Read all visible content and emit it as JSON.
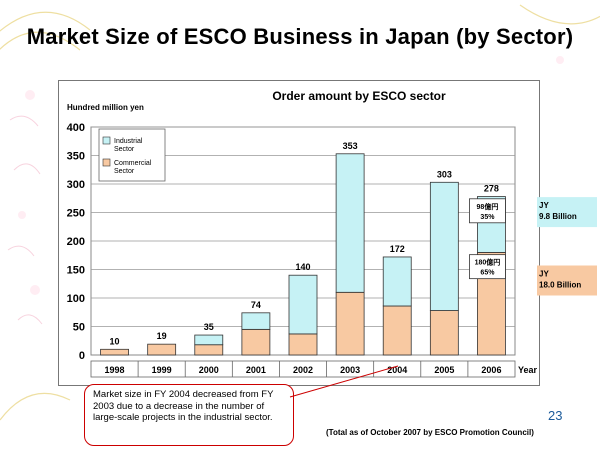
{
  "page": {
    "title": "Market Size of ESCO Business in Japan (by Sector)",
    "slide_number": "23",
    "source_note": "(Total as of October 2007 by ESCO Promotion Council)",
    "callout_text": "Market size in FY 2004 decreased from FY 2003 due to a decrease in the number of large-scale projects in the industrial sector."
  },
  "colors": {
    "industrial": "#c6f2f5",
    "commercial": "#f8c9a2",
    "bar_border": "#333333",
    "callout_border": "#cc0000",
    "slide_number": "#1a5a9a"
  },
  "chart_data": {
    "type": "bar",
    "stacked": true,
    "title": "Order amount by ESCO sector",
    "ylabel": "Hundred million yen",
    "xlabel": "Year",
    "ylim": [
      0,
      400
    ],
    "yticks": [
      0,
      50,
      100,
      150,
      200,
      250,
      300,
      350,
      400
    ],
    "grid": true,
    "legend_position": "top-left",
    "categories": [
      "1998",
      "1999",
      "2000",
      "2001",
      "2002",
      "2003",
      "2004",
      "2005",
      "2006"
    ],
    "totals": [
      10,
      19,
      35,
      74,
      140,
      353,
      172,
      303,
      278
    ],
    "series": [
      {
        "name": "Commercial Sector",
        "values": [
          10,
          19,
          18,
          45,
          37,
          110,
          86,
          78,
          180
        ]
      },
      {
        "name": "Industrial Sector",
        "values": [
          0,
          0,
          17,
          29,
          103,
          243,
          86,
          225,
          98
        ]
      }
    ],
    "annotations": {
      "industrial_box": {
        "line1": "98億円",
        "line2": "35%",
        "side_jy": "JY",
        "side_amount": "9.8 Billion"
      },
      "commercial_box": {
        "line1": "180億円",
        "line2": "65%",
        "side_jy": "JY",
        "side_amount": "18.0 Billion"
      }
    }
  }
}
